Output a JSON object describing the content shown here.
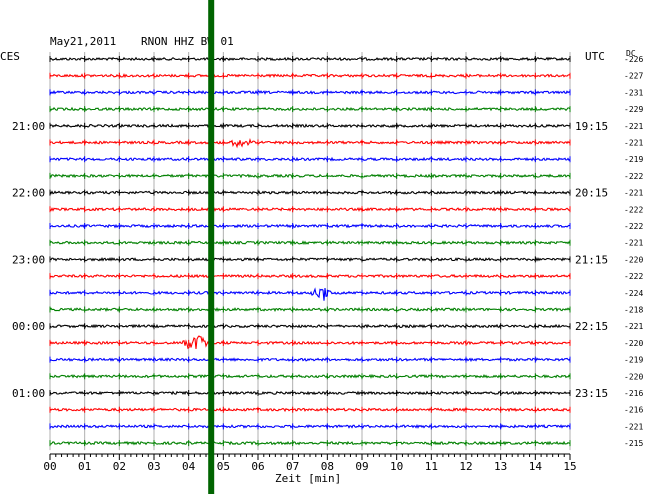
{
  "header": {
    "date": "May21,2011",
    "station": "RNON HHZ BW 01",
    "left_timezone": "CES",
    "right_timezone": "UTC",
    "dc_label": "DC"
  },
  "chart_data": {
    "type": "line",
    "title": "May21,2011   RNON HHZ BW 01",
    "xlabel": "Zeit [min]",
    "xlim": [
      0,
      15
    ],
    "x_ticks": [
      "00",
      "01",
      "02",
      "03",
      "04",
      "05",
      "06",
      "07",
      "08",
      "09",
      "10",
      "11",
      "12",
      "13",
      "14",
      "15"
    ],
    "grid": true,
    "trace_colors": [
      "#000000",
      "#ff0000",
      "#0000ff",
      "#008000"
    ],
    "left_hour_labels": [
      {
        "row": 4,
        "text": "21:00"
      },
      {
        "row": 8,
        "text": "22:00"
      },
      {
        "row": 12,
        "text": "23:00"
      },
      {
        "row": 16,
        "text": "00:00"
      },
      {
        "row": 20,
        "text": "01:00"
      }
    ],
    "right_utc_labels": [
      {
        "row": 4,
        "text": "19:15"
      },
      {
        "row": 8,
        "text": "20:15"
      },
      {
        "row": 12,
        "text": "21:15"
      },
      {
        "row": 16,
        "text": "22:15"
      },
      {
        "row": 20,
        "text": "23:15"
      }
    ],
    "dc_offsets": [
      "-226",
      "-227",
      "-231",
      "-229",
      "-221",
      "-221",
      "-219",
      "-222",
      "-221",
      "-222",
      "-222",
      "-221",
      "-220",
      "-222",
      "-224",
      "-218",
      "-221",
      "-220",
      "-219",
      "-220",
      "-216",
      "-216",
      "-221",
      "-215"
    ],
    "events": [
      {
        "row": 5,
        "minute": 5.5,
        "amplitude": 5,
        "duration_min": 0.6
      },
      {
        "row": 14,
        "minute": 7.8,
        "amplitude": 9,
        "duration_min": 0.5
      },
      {
        "row": 17,
        "minute": 4.2,
        "amplitude": 8,
        "duration_min": 0.8
      }
    ],
    "marker_line": {
      "minute": 4.65,
      "color": "#006400"
    }
  }
}
